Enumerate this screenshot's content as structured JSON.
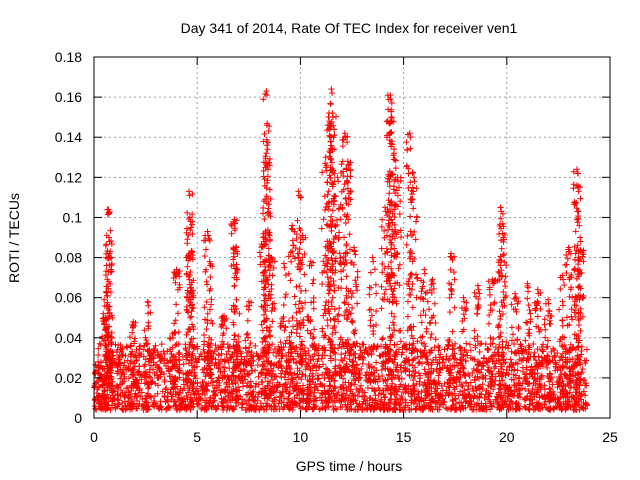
{
  "chart_data": {
    "type": "scatter",
    "title": "Day 341 of 2014, Rate Of TEC Index for receiver ven1",
    "xlabel": "GPS time / hours",
    "ylabel": "ROTI / TECUs",
    "xlim": [
      0,
      25
    ],
    "ylim": [
      0,
      0.18
    ],
    "x_ticks": [
      0,
      5,
      10,
      15,
      20,
      25
    ],
    "y_ticks": [
      0,
      0.02,
      0.04,
      0.06,
      0.08,
      0.1,
      0.12,
      0.14,
      0.16,
      0.18
    ],
    "x_tick_labels": [
      "0",
      "5",
      "10",
      "15",
      "20",
      "25"
    ],
    "y_tick_labels": [
      "0",
      "0.02",
      "0.04",
      "0.06",
      "0.08",
      "0.1",
      "0.12",
      "0.14",
      "0.16",
      "0.18"
    ],
    "grid": true,
    "marker": "+",
    "color": "#ff0000",
    "series": [
      {
        "x_range": [
          0,
          23.9
        ],
        "baseline_band": [
          0.004,
          0.025
        ],
        "bursts": [
          {
            "x": 0.2,
            "peak": 0.028
          },
          {
            "x": 0.45,
            "peak": 0.052
          },
          {
            "x": 0.6,
            "peak": 0.063
          },
          {
            "x": 0.7,
            "peak": 0.104
          },
          {
            "x": 0.72,
            "peak": 0.09
          },
          {
            "x": 0.75,
            "peak": 0.082
          },
          {
            "x": 1.3,
            "peak": 0.035
          },
          {
            "x": 1.9,
            "peak": 0.048
          },
          {
            "x": 2.6,
            "peak": 0.058
          },
          {
            "x": 3.8,
            "peak": 0.042
          },
          {
            "x": 4.0,
            "peak": 0.074
          },
          {
            "x": 4.6,
            "peak": 0.113
          },
          {
            "x": 4.65,
            "peak": 0.1
          },
          {
            "x": 4.7,
            "peak": 0.065
          },
          {
            "x": 5.5,
            "peak": 0.093
          },
          {
            "x": 5.6,
            "peak": 0.078
          },
          {
            "x": 6.3,
            "peak": 0.051
          },
          {
            "x": 6.8,
            "peak": 0.099
          },
          {
            "x": 6.9,
            "peak": 0.085
          },
          {
            "x": 7.5,
            "peak": 0.058
          },
          {
            "x": 8.2,
            "peak": 0.09
          },
          {
            "x": 8.35,
            "peak": 0.163
          },
          {
            "x": 8.38,
            "peak": 0.136
          },
          {
            "x": 8.4,
            "peak": 0.126
          },
          {
            "x": 8.6,
            "peak": 0.08
          },
          {
            "x": 9.2,
            "peak": 0.077
          },
          {
            "x": 9.6,
            "peak": 0.096
          },
          {
            "x": 9.9,
            "peak": 0.113
          },
          {
            "x": 10.1,
            "peak": 0.091
          },
          {
            "x": 10.5,
            "peak": 0.078
          },
          {
            "x": 11.2,
            "peak": 0.127
          },
          {
            "x": 11.4,
            "peak": 0.146
          },
          {
            "x": 11.5,
            "peak": 0.164
          },
          {
            "x": 11.55,
            "peak": 0.152
          },
          {
            "x": 11.8,
            "peak": 0.12
          },
          {
            "x": 12.15,
            "peak": 0.142
          },
          {
            "x": 12.3,
            "peak": 0.128
          },
          {
            "x": 12.6,
            "peak": 0.085
          },
          {
            "x": 13.5,
            "peak": 0.08
          },
          {
            "x": 14.1,
            "peak": 0.105
          },
          {
            "x": 14.35,
            "peak": 0.161
          },
          {
            "x": 14.4,
            "peak": 0.15
          },
          {
            "x": 14.5,
            "peak": 0.131
          },
          {
            "x": 14.7,
            "peak": 0.12
          },
          {
            "x": 15.3,
            "peak": 0.142
          },
          {
            "x": 15.5,
            "peak": 0.12
          },
          {
            "x": 16.0,
            "peak": 0.074
          },
          {
            "x": 16.4,
            "peak": 0.069
          },
          {
            "x": 17.3,
            "peak": 0.082
          },
          {
            "x": 17.9,
            "peak": 0.06
          },
          {
            "x": 18.6,
            "peak": 0.066
          },
          {
            "x": 19.3,
            "peak": 0.069
          },
          {
            "x": 19.7,
            "peak": 0.105
          },
          {
            "x": 19.8,
            "peak": 0.092
          },
          {
            "x": 20.4,
            "peak": 0.062
          },
          {
            "x": 21.0,
            "peak": 0.067
          },
          {
            "x": 21.5,
            "peak": 0.064
          },
          {
            "x": 22.0,
            "peak": 0.059
          },
          {
            "x": 22.7,
            "peak": 0.071
          },
          {
            "x": 23.0,
            "peak": 0.085
          },
          {
            "x": 23.4,
            "peak": 0.124
          },
          {
            "x": 23.45,
            "peak": 0.115
          },
          {
            "x": 23.55,
            "peak": 0.09
          }
        ]
      }
    ]
  }
}
